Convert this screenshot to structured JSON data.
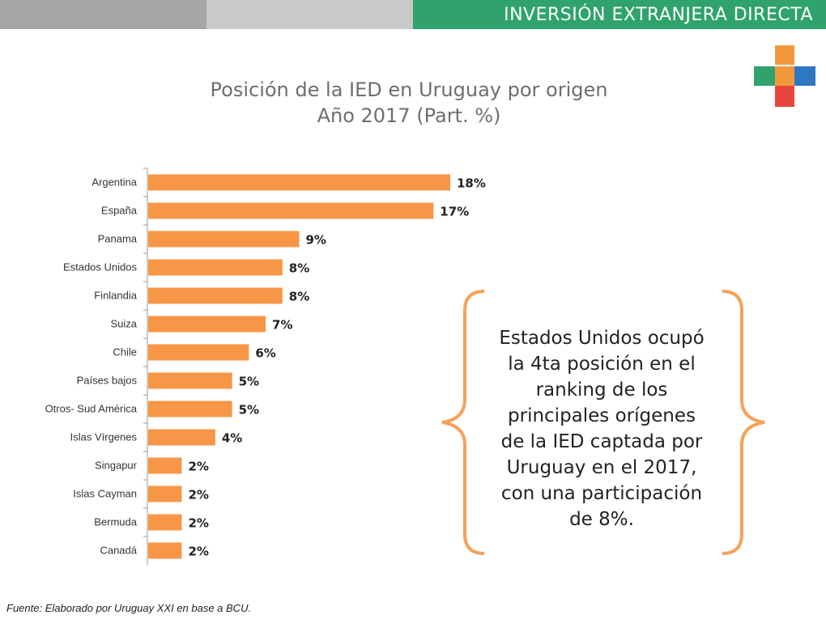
{
  "header": {
    "section_title": "INVERSIÓN EXTRANJERA DIRECTA"
  },
  "logo": {
    "colors": [
      "#f29a3b",
      "#2fa36b",
      "#2e78c2",
      "#e8453c"
    ]
  },
  "chart_data": {
    "type": "bar",
    "orientation": "horizontal",
    "title": "Posición de la IED en Uruguay por origen",
    "subtitle": "Año 2017 (Part. %)",
    "categories": [
      "Argentina",
      "España",
      "Panama",
      "Estados Unidos",
      "Finlandia",
      "Suiza",
      "Chile",
      "Países bajos",
      "Otros- Sud América",
      "Islas Vírgenes",
      "Singapur",
      "Islas Cayman",
      "Bermuda",
      "Canadá"
    ],
    "values": [
      18,
      17,
      9,
      8,
      8,
      7,
      6,
      5,
      5,
      4,
      2,
      2,
      2,
      2
    ],
    "value_labels": [
      "18%",
      "17%",
      "9%",
      "8%",
      "8%",
      "7%",
      "6%",
      "5%",
      "5%",
      "4%",
      "2%",
      "2%",
      "2%",
      "2%"
    ],
    "bar_color": "#f79646",
    "xlim": [
      0,
      18
    ]
  },
  "callout": {
    "lines": [
      "Estados Unidos ocupó",
      "la 4ta posición en el",
      "ranking de los",
      "principales orígenes",
      "de la IED captada por",
      "Uruguay en el 2017,",
      "con una participación",
      "de 8%."
    ],
    "brace_color": "#f5a25a"
  },
  "footer": {
    "source": "Fuente: Elaborado por Uruguay XXI en base a BCU."
  }
}
